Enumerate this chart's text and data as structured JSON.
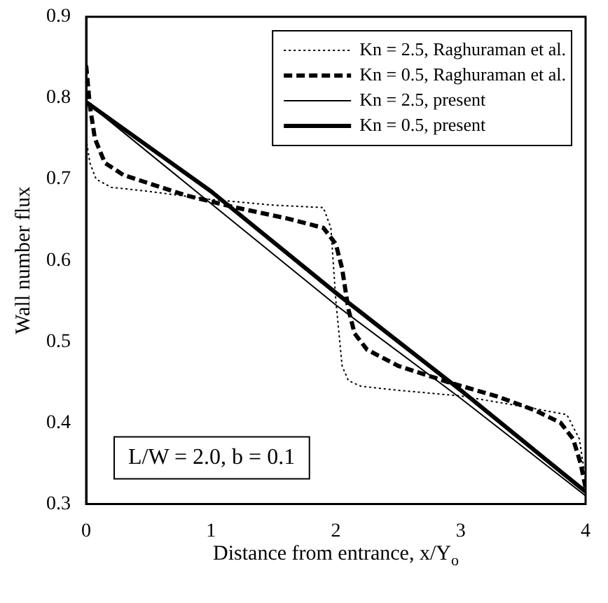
{
  "chart_data": {
    "type": "line",
    "xlabel": "Distance from entrance, x/Y$_{o}$",
    "ylabel": "Wall number flux",
    "xlim": [
      0,
      4
    ],
    "ylim": [
      0.3,
      0.9
    ],
    "xticks": [
      0,
      1,
      2,
      3,
      4
    ],
    "yticks": [
      0.3,
      0.4,
      0.5,
      0.6,
      0.7,
      0.8,
      0.9
    ],
    "grid": false,
    "legend": "top right",
    "marker": "none",
    "annotations": [
      "L/W = 2.0, b = 0.1"
    ],
    "series": [
      {
        "name": "Kn = 2.5, Raghuraman et al.",
        "color": "#000000",
        "line_style": "dotted",
        "x": [
          0,
          0.03,
          0.08,
          0.2,
          0.5,
          1,
          1.5,
          1.9,
          1.96,
          2,
          2.05,
          2.1,
          2.2,
          2.5,
          3,
          3.5,
          3.85,
          3.95,
          4
        ],
        "values": [
          0.75,
          0.72,
          0.7,
          0.69,
          0.685,
          0.675,
          0.668,
          0.665,
          0.64,
          0.55,
          0.47,
          0.452,
          0.445,
          0.44,
          0.433,
          0.42,
          0.41,
          0.38,
          0.33
        ]
      },
      {
        "name": "Kn = 0.5, Raghuraman et al.",
        "color": "#000000",
        "line_style": "dashed",
        "x": [
          0,
          0.03,
          0.07,
          0.15,
          0.3,
          0.5,
          0.8,
          1.2,
          1.6,
          1.9,
          2,
          2.05,
          2.1,
          2.15,
          2.25,
          2.5,
          2.9,
          3.3,
          3.6,
          3.8,
          3.9,
          3.96,
          4
        ],
        "values": [
          0.84,
          0.79,
          0.75,
          0.72,
          0.705,
          0.695,
          0.68,
          0.665,
          0.652,
          0.64,
          0.62,
          0.59,
          0.54,
          0.51,
          0.49,
          0.47,
          0.45,
          0.432,
          0.415,
          0.4,
          0.38,
          0.35,
          0.32
        ]
      },
      {
        "name": "Kn = 2.5, present",
        "color": "#000000",
        "line_style": "solid",
        "x": [
          0,
          1,
          2,
          3,
          4
        ],
        "values": [
          0.795,
          0.67,
          0.545,
          0.43,
          0.31
        ]
      },
      {
        "name": "Kn = 0.5, present",
        "color": "#000000",
        "line_style": "solid",
        "x": [
          0,
          1,
          2,
          3,
          4
        ],
        "values": [
          0.795,
          0.685,
          0.56,
          0.44,
          0.315
        ]
      }
    ]
  }
}
